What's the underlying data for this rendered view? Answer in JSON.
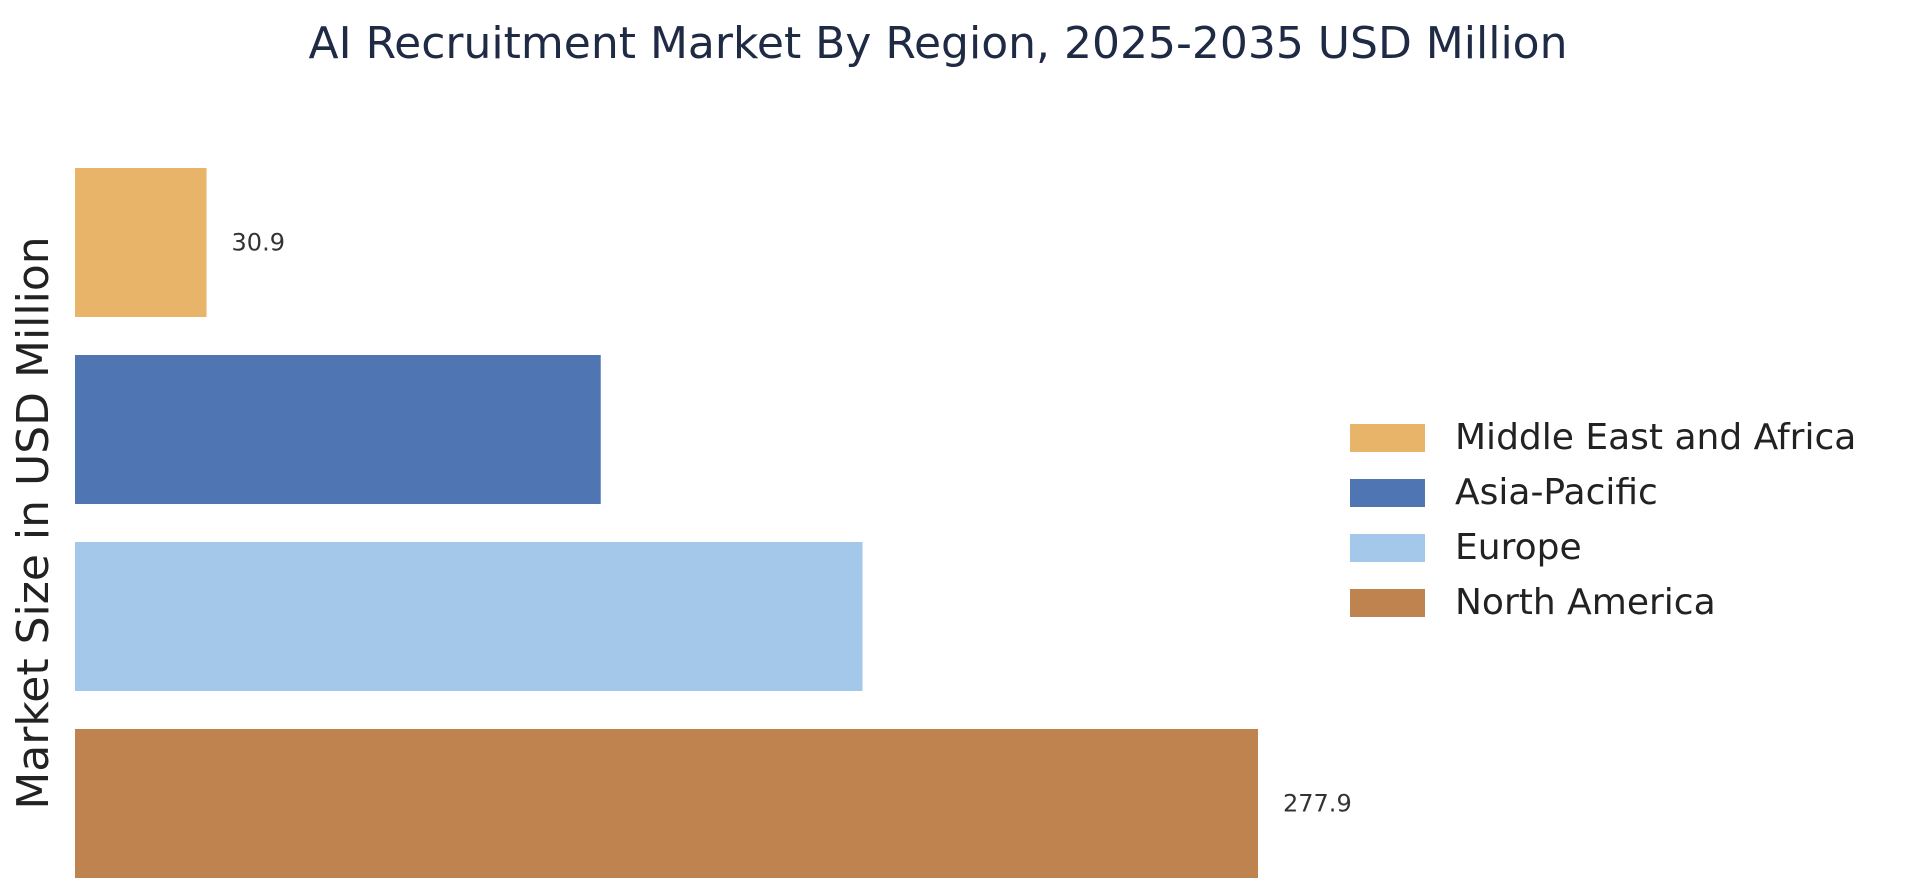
{
  "chart_data": {
    "type": "bar",
    "orientation": "horizontal",
    "title": "AI Recruitment Market By Region, 2025-2035 USD Million",
    "ylabel": "Market Size in USD Million",
    "xlabel": "",
    "categories": [
      "Middle East and Africa",
      "Asia-Pacific",
      "Europe",
      "North America"
    ],
    "values": [
      30.9,
      123.5,
      185.0,
      277.9
    ],
    "value_labels": [
      "30.9",
      "",
      "",
      "277.9"
    ],
    "colors": [
      "#e8b46a",
      "#4f75b3",
      "#a3c8ea",
      "#bf834f"
    ],
    "xlim": [
      0,
      277.9
    ],
    "grid": false,
    "legend_position": "right"
  }
}
